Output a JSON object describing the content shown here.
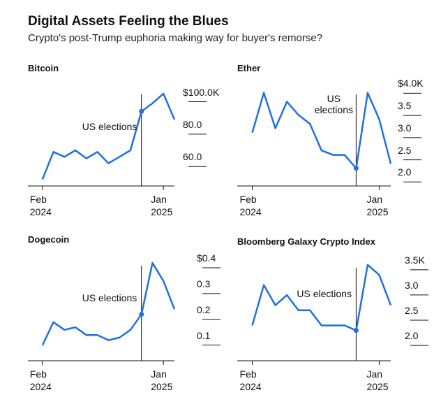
{
  "header": {
    "title": "Digital Assets Feeling the Blues",
    "subtitle": "Crypto's post-Trump euphoria making way for buyer's remorse?"
  },
  "chart_data": [
    {
      "type": "line",
      "title": "Bitcoin",
      "x": [
        "2024-02",
        "2024-03",
        "2024-04",
        "2024-05",
        "2024-06",
        "2024-07",
        "2024-08",
        "2024-09",
        "2024-10",
        "2024-11",
        "2024-12",
        "2025-01",
        "2025-02"
      ],
      "series": [
        {
          "name": "Bitcoin",
          "color": "#1f6fe5",
          "values": [
            49,
            66,
            63,
            67,
            62,
            66,
            59,
            63,
            67,
            91,
            96,
            102,
            86
          ]
        }
      ],
      "xlim": [
        "2024-01",
        "2025-02"
      ],
      "xticks": [
        {
          "value": "2024-02",
          "label": "Feb 2024"
        },
        {
          "value": "2025-01",
          "label": "Jan 2025"
        }
      ],
      "ylim": [
        45,
        108
      ],
      "yticks": [
        {
          "value": 60,
          "label": "60.0"
        },
        {
          "value": 80,
          "label": "80.0"
        },
        {
          "value": 100,
          "label": "$100.0K"
        }
      ],
      "annotation": {
        "text": "US elections",
        "x": "2024-11"
      }
    },
    {
      "type": "line",
      "title": "Ether",
      "x": [
        "2024-02",
        "2024-03",
        "2024-04",
        "2024-05",
        "2024-06",
        "2024-07",
        "2024-08",
        "2024-09",
        "2024-10",
        "2024-11",
        "2024-12",
        "2025-01",
        "2025-02"
      ],
      "series": [
        {
          "name": "Ether",
          "color": "#1f6fe5",
          "values": [
            3.0,
            3.9,
            3.1,
            3.7,
            3.4,
            3.2,
            2.6,
            2.5,
            2.5,
            2.2,
            3.9,
            3.3,
            2.3
          ]
        }
      ],
      "xlim": [
        "2024-01",
        "2025-02"
      ],
      "xticks": [
        {
          "value": "2024-02",
          "label": "Feb 2024"
        },
        {
          "value": "2025-01",
          "label": "Jan 2025"
        }
      ],
      "ylim": [
        1.8,
        4.1
      ],
      "yticks": [
        {
          "value": 2,
          "label": "2.0"
        },
        2.5,
        {
          "value": 3,
          "label": "3.0"
        },
        3.5,
        {
          "value": 4,
          "label": "$4.0K"
        }
      ],
      "annotation": {
        "text": "US elections",
        "x": "2024-11"
      }
    },
    {
      "type": "line",
      "title": "Dogecoin",
      "x": [
        "2024-02",
        "2024-03",
        "2024-04",
        "2024-05",
        "2024-06",
        "2024-07",
        "2024-08",
        "2024-09",
        "2024-10",
        "2024-11",
        "2024-12",
        "2025-01",
        "2025-02"
      ],
      "series": [
        {
          "name": "Dogecoin",
          "color": "#1f6fe5",
          "values": [
            0.08,
            0.17,
            0.14,
            0.15,
            0.12,
            0.12,
            0.1,
            0.11,
            0.14,
            0.2,
            0.4,
            0.33,
            0.22
          ]
        }
      ],
      "xlim": [
        "2024-01",
        "2025-02"
      ],
      "xticks": [
        {
          "value": "2024-02",
          "label": "Feb 2024"
        },
        {
          "value": "2025-01",
          "label": "Jan 2025"
        }
      ],
      "ylim": [
        0.02,
        0.43
      ],
      "yticks": [
        0.1,
        0.2,
        0.3,
        {
          "value": 0.4,
          "label": "$0.4"
        }
      ],
      "annotation": {
        "text": "US elections",
        "x": "2024-11"
      }
    },
    {
      "type": "line",
      "title": "Bloomberg Galaxy Crypto Index",
      "x": [
        "2024-02",
        "2024-03",
        "2024-04",
        "2024-05",
        "2024-06",
        "2024-07",
        "2024-08",
        "2024-09",
        "2024-10",
        "2024-11",
        "2024-12",
        "2025-01",
        "2025-02"
      ],
      "series": [
        {
          "name": "Bloomberg Galaxy Crypto Index",
          "color": "#1f6fe5",
          "values": [
            2.3,
            3.1,
            2.7,
            2.9,
            2.6,
            2.6,
            2.3,
            2.3,
            2.3,
            2.2,
            3.5,
            3.3,
            2.7
          ]
        }
      ],
      "xlim": [
        "2024-01",
        "2025-02"
      ],
      "xticks": [
        {
          "value": "2024-02",
          "label": "Feb 2024"
        },
        {
          "value": "2025-01",
          "label": "Jan 2025"
        }
      ],
      "ylim": [
        1.6,
        3.65
      ],
      "yticks": [
        {
          "value": 2,
          "label": "2.0"
        },
        2.5,
        {
          "value": 3,
          "label": "3.0"
        },
        {
          "value": 3.5,
          "label": "3.5K"
        }
      ],
      "annotation": {
        "text": "US elections",
        "x": "2024-11"
      }
    }
  ]
}
